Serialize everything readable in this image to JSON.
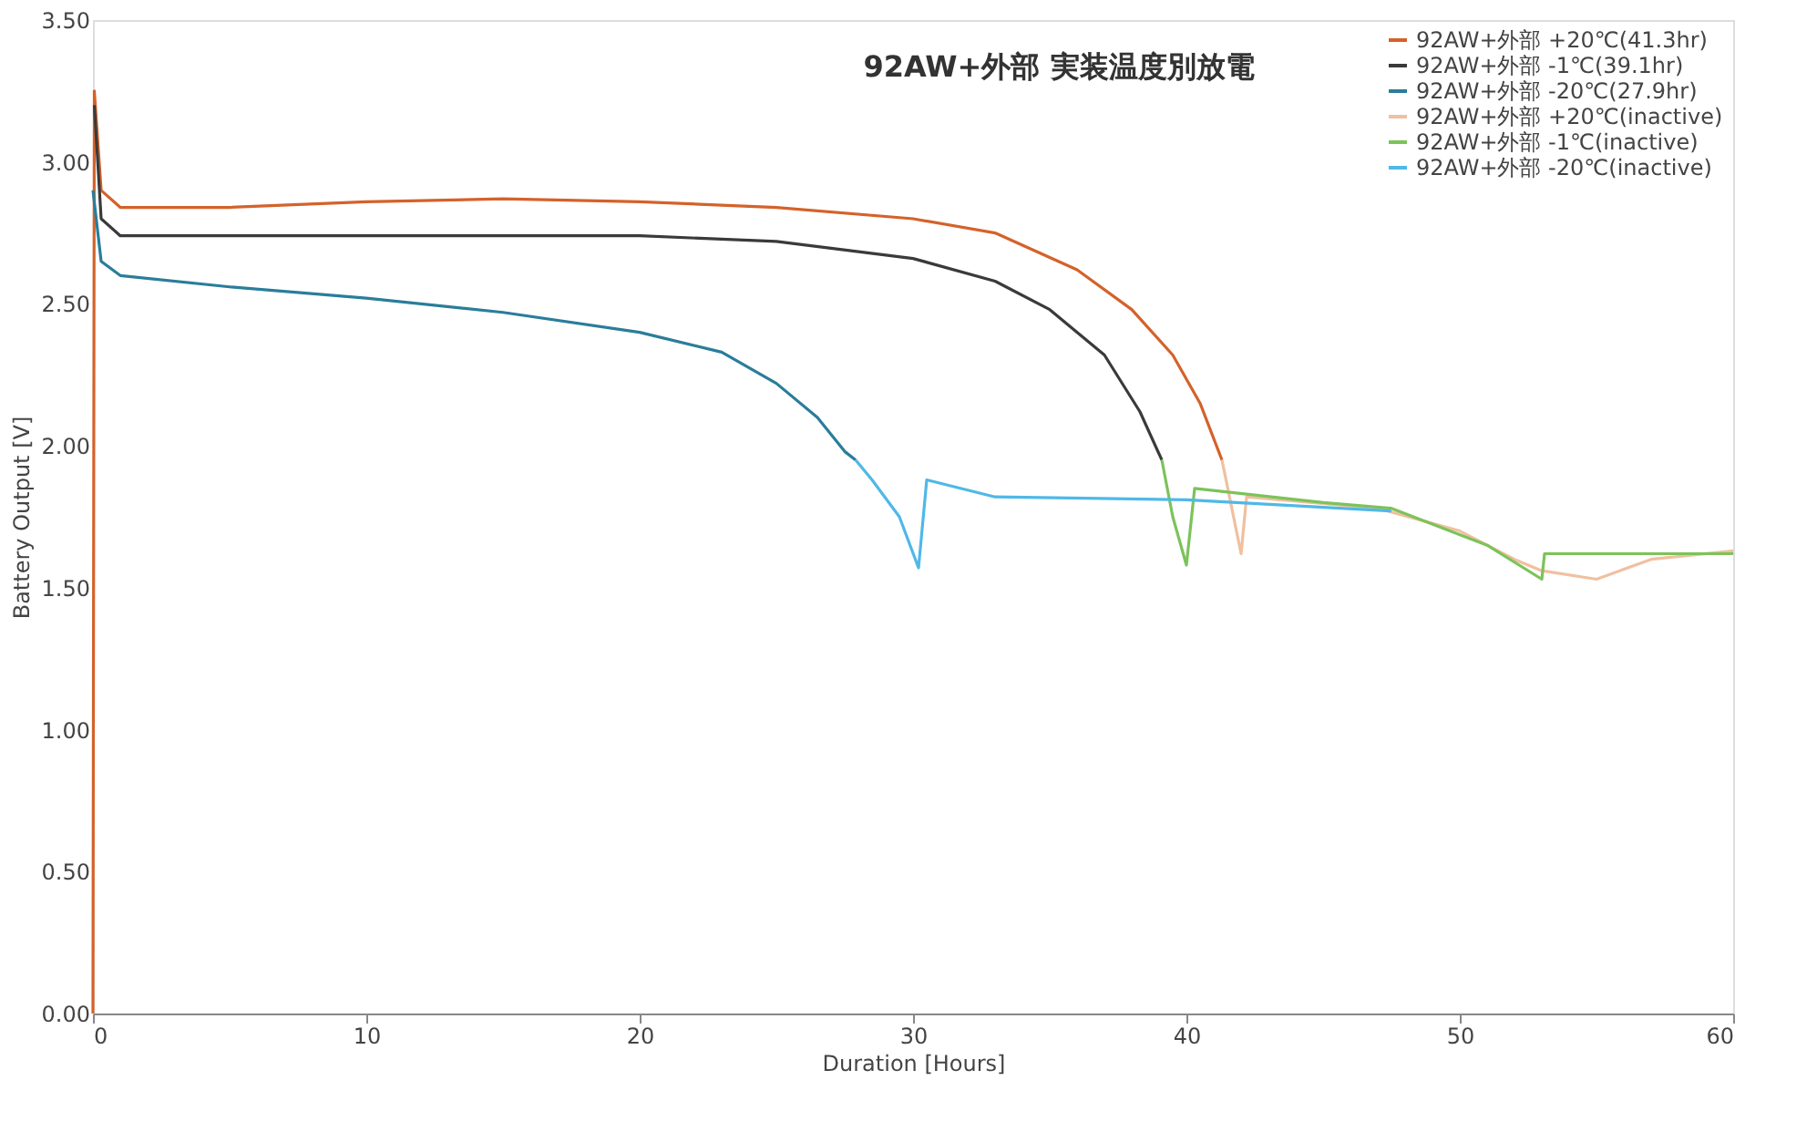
{
  "chart_data": {
    "type": "line",
    "title": "92AW+外部 実装温度別放電",
    "xlabel": "Duration [Hours]",
    "ylabel": "Battery Output [V]",
    "xlim": [
      0,
      60
    ],
    "xticks": [
      0,
      10,
      20,
      30,
      40,
      50,
      60
    ],
    "ylim": [
      0,
      3.5
    ],
    "yticks": [
      {
        "value": 0,
        "label": "0.00"
      },
      {
        "value": 0.5,
        "label": "0.50"
      },
      {
        "value": 1,
        "label": "1.00"
      },
      {
        "value": 1.5,
        "label": "1.50"
      },
      {
        "value": 2,
        "label": "2.00"
      },
      {
        "value": 2.5,
        "label": "2.50"
      },
      {
        "value": 3,
        "label": "3.00"
      },
      {
        "value": 3.5,
        "label": "3.50"
      }
    ],
    "grid": false,
    "legend": "top right",
    "marker": "none",
    "line_style": "solid",
    "series": [
      {
        "name": "92AW+外部 +20℃(41.3hr)",
        "color": "#d4622a",
        "x": [
          0,
          0.05,
          0.3,
          1,
          5,
          10,
          15,
          20,
          25,
          30,
          33,
          36,
          38,
          39.5,
          40.5,
          41.3
        ],
        "values": [
          0,
          3.25,
          2.9,
          2.84,
          2.84,
          2.86,
          2.87,
          2.86,
          2.84,
          2.8,
          2.75,
          2.62,
          2.48,
          2.32,
          2.15,
          1.95
        ]
      },
      {
        "name": "92AW+外部 -1℃(39.1hr)",
        "color": "#3a3a3a",
        "x": [
          0.05,
          0.3,
          1,
          10,
          20,
          25,
          30,
          33,
          35,
          37,
          38.3,
          39.1
        ],
        "values": [
          3.2,
          2.8,
          2.74,
          2.74,
          2.74,
          2.72,
          2.66,
          2.58,
          2.48,
          2.32,
          2.12,
          1.95
        ]
      },
      {
        "name": "92AW+外部 -20℃(27.9hr)",
        "color": "#2a7d9a",
        "x": [
          0,
          0.3,
          1,
          5,
          10,
          15,
          20,
          23,
          25,
          26.5,
          27.5,
          27.9
        ],
        "values": [
          2.9,
          2.65,
          2.6,
          2.56,
          2.52,
          2.47,
          2.4,
          2.33,
          2.22,
          2.1,
          1.98,
          1.95
        ]
      },
      {
        "name": "92AW+外部 +20℃(inactive)",
        "color": "#f0c0a0",
        "x": [
          41.3,
          42,
          42.2,
          47,
          50,
          52,
          53,
          55,
          57,
          60
        ],
        "values": [
          1.95,
          1.62,
          1.82,
          1.78,
          1.7,
          1.6,
          1.56,
          1.53,
          1.6,
          1.63
        ]
      },
      {
        "name": "92AW+外部 -1℃(inactive)",
        "color": "#7cc35a",
        "x": [
          39.1,
          39.5,
          40,
          40.3,
          45,
          47.5,
          51,
          53,
          53.1,
          60
        ],
        "values": [
          1.95,
          1.75,
          1.58,
          1.85,
          1.8,
          1.78,
          1.65,
          1.53,
          1.62,
          1.62
        ]
      },
      {
        "name": "92AW+外部 -20℃(inactive)",
        "color": "#4fb8e8",
        "x": [
          27.9,
          28.5,
          29.5,
          30.2,
          30.5,
          33,
          40,
          47.5
        ],
        "values": [
          1.95,
          1.88,
          1.75,
          1.57,
          1.88,
          1.82,
          1.81,
          1.77
        ]
      }
    ]
  }
}
